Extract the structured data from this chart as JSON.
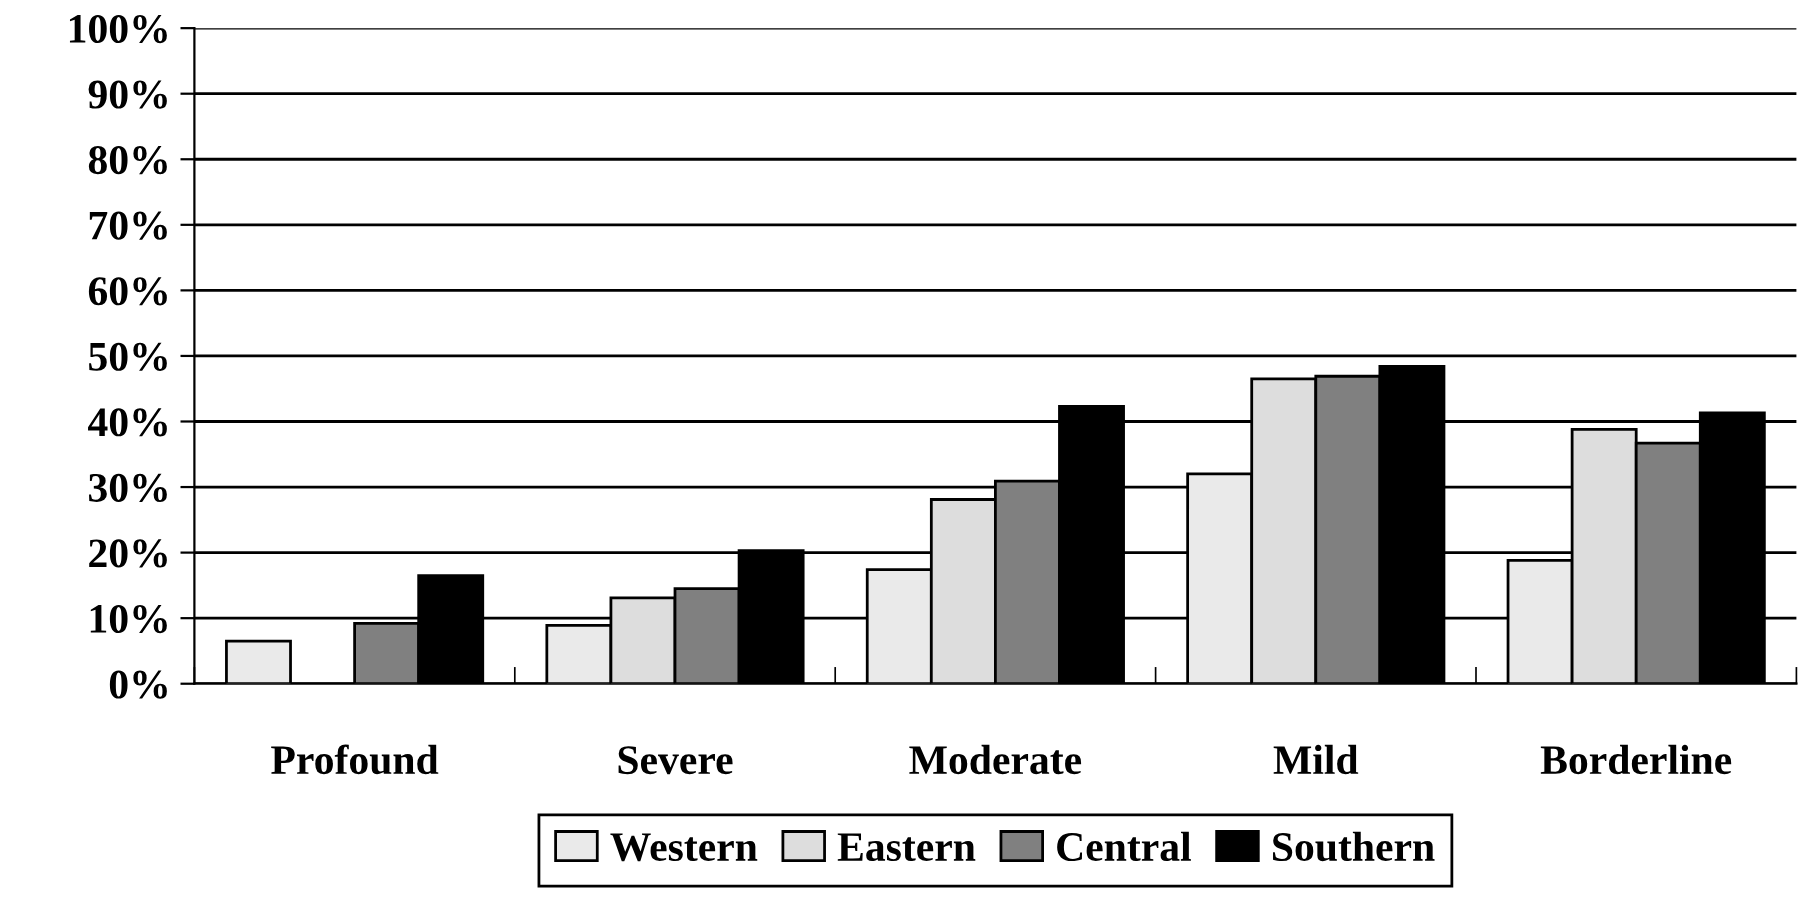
{
  "chart_data": {
    "type": "bar",
    "categories": [
      "Profound",
      "Severe",
      "Moderate",
      "Mild",
      "Borderline"
    ],
    "series": [
      {
        "name": "Western",
        "color": "#eaeaea",
        "values": [
          6.5,
          8.9,
          17.4,
          32.0,
          18.8
        ]
      },
      {
        "name": "Eastern",
        "color": "#dddddd",
        "values": [
          null,
          13.1,
          28.1,
          46.5,
          38.8
        ]
      },
      {
        "name": "Central",
        "color": "#808080",
        "values": [
          9.2,
          14.5,
          30.9,
          46.9,
          36.7
        ]
      },
      {
        "name": "Southern",
        "color": "#000000",
        "values": [
          16.5,
          20.3,
          42.3,
          48.4,
          41.3
        ]
      }
    ],
    "ylim": [
      0,
      100
    ],
    "yticks": [
      {
        "value": 0,
        "label": "0%"
      },
      {
        "value": 10,
        "label": "10%"
      },
      {
        "value": 20,
        "label": "20%"
      },
      {
        "value": 30,
        "label": "30%"
      },
      {
        "value": 40,
        "label": "40%"
      },
      {
        "value": 50,
        "label": "50%"
      },
      {
        "value": 60,
        "label": "60%"
      },
      {
        "value": 70,
        "label": "70%"
      },
      {
        "value": 80,
        "label": "80%"
      },
      {
        "value": 90,
        "label": "90%"
      },
      {
        "value": 100,
        "label": "100%"
      }
    ],
    "grid": "y",
    "legend": "bottom"
  }
}
